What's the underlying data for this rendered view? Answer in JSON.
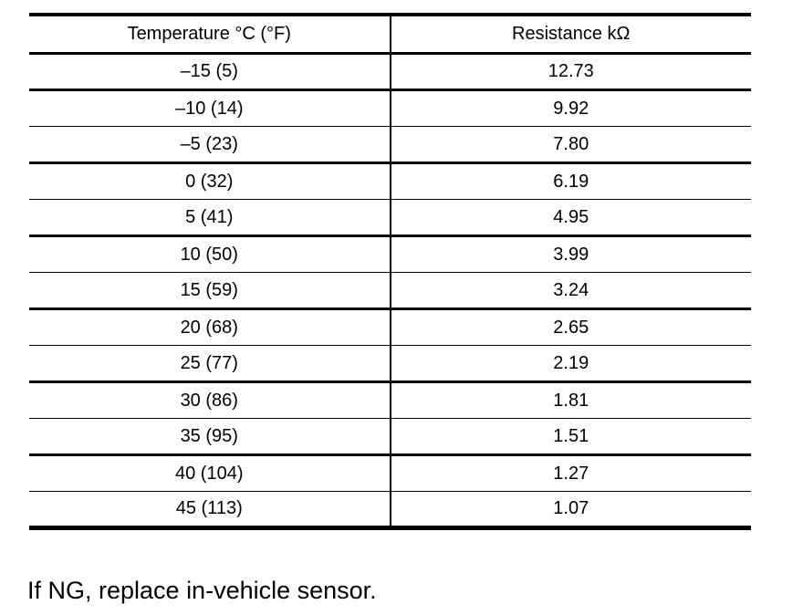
{
  "colors": {
    "ink": "#000000",
    "background": "#ffffff"
  },
  "table": {
    "headers": [
      "Temperature °C (°F)",
      "Resistance kΩ"
    ],
    "rows": [
      {
        "temperature": "–15 (5)",
        "resistance": "12.73"
      },
      {
        "temperature": "–10 (14)",
        "resistance": "9.92"
      },
      {
        "temperature": "–5 (23)",
        "resistance": "7.80"
      },
      {
        "temperature": "0 (32)",
        "resistance": "6.19"
      },
      {
        "temperature": "5 (41)",
        "resistance": "4.95"
      },
      {
        "temperature": "10 (50)",
        "resistance": "3.99"
      },
      {
        "temperature": "15 (59)",
        "resistance": "3.24"
      },
      {
        "temperature": "20 (68)",
        "resistance": "2.65"
      },
      {
        "temperature": "25 (77)",
        "resistance": "2.19"
      },
      {
        "temperature": "30 (86)",
        "resistance": "1.81"
      },
      {
        "temperature": "35 (95)",
        "resistance": "1.51"
      },
      {
        "temperature": "40 (104)",
        "resistance": "1.27"
      },
      {
        "temperature": "45 (113)",
        "resistance": "1.07"
      }
    ]
  },
  "footer": {
    "note": "If NG, replace in-vehicle sensor."
  }
}
